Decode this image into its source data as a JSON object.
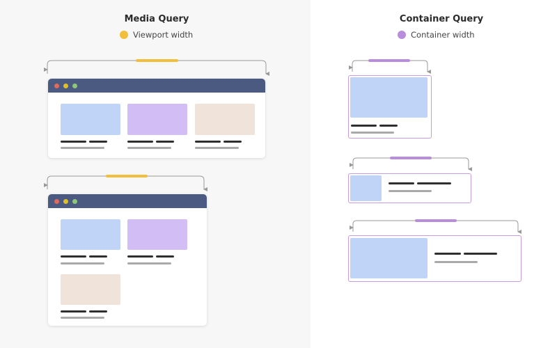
{
  "media_query": {
    "title": "Media Query",
    "legend": "Viewport width",
    "legend_color": "#f2bf3c"
  },
  "container_query": {
    "title": "Container Query",
    "legend": "Container width",
    "legend_color": "#b88ddb"
  },
  "colors": {
    "window_bar": "#4a5a80",
    "card_blue": "#bfd4f6",
    "card_purple": "#d3bdf5",
    "card_beige": "#efe3da",
    "dot_red": "#e06a5e",
    "dot_yellow": "#e0bf2a",
    "dot_green": "#8fc77a"
  }
}
